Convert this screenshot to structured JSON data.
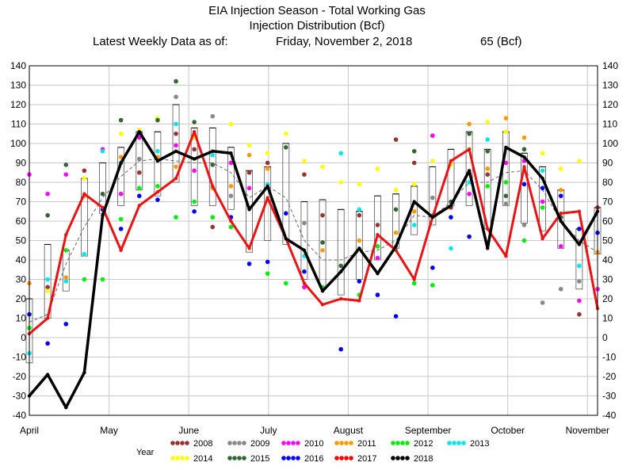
{
  "chart_data": {
    "type": "line",
    "title": "EIA Injection Season - Total Working Gas",
    "subtitle": "Injection Distribution (Bcf)",
    "latest_label": "Latest Weekly Data as of:",
    "latest_date": "Friday, November 2, 2018",
    "latest_value": "65 (Bcf)",
    "ylim": [
      -40,
      140
    ],
    "y_ticks": [
      -40,
      -30,
      -20,
      -10,
      0,
      10,
      20,
      30,
      40,
      50,
      60,
      70,
      80,
      90,
      100,
      110,
      120,
      130,
      140
    ],
    "grid": true,
    "x_month_labels": [
      "April",
      "May",
      "June",
      "July",
      "August",
      "September",
      "October",
      "November"
    ],
    "x_month_positions": [
      0,
      4.35,
      8.7,
      13.05,
      17.4,
      21.75,
      26.1,
      30.45
    ],
    "weeks": 31,
    "legend_title": "Year",
    "legend_items": [
      {
        "year": "2008",
        "color": "#993333"
      },
      {
        "year": "2009",
        "color": "#888888"
      },
      {
        "year": "2010",
        "color": "#ff00ff"
      },
      {
        "year": "2011",
        "color": "#ff9900"
      },
      {
        "year": "2012",
        "color": "#00ee00"
      },
      {
        "year": "2013",
        "color": "#00e5ee"
      },
      {
        "year": "2014",
        "color": "#ffff00"
      },
      {
        "year": "2015",
        "color": "#336633"
      },
      {
        "year": "2016",
        "color": "#0000ff"
      },
      {
        "year": "2017",
        "color": "#ff0000"
      },
      {
        "year": "2018",
        "color": "#000000"
      }
    ],
    "series": [
      {
        "name": "2017",
        "color": "#ee1111",
        "width": 3,
        "values": [
          2,
          10,
          53,
          74,
          67,
          45,
          68,
          75,
          82,
          106,
          78,
          60,
          46,
          72,
          51,
          28,
          17,
          20,
          19,
          53,
          45,
          30,
          62,
          91,
          97,
          56,
          42,
          88,
          51,
          64,
          65,
          15
        ]
      },
      {
        "name": "2018",
        "color": "#000000",
        "width": 3.5,
        "values": [
          -30,
          -19,
          -36,
          -18,
          63,
          90,
          106,
          91,
          96,
          92,
          96,
          95,
          66,
          78,
          51,
          45,
          24,
          34,
          46,
          33,
          47,
          70,
          62,
          68,
          86,
          46,
          98,
          93,
          82,
          60,
          48,
          65
        ]
      }
    ],
    "average": [
      8,
      12,
      38,
      57,
      72,
      83,
      91,
      92,
      91,
      90,
      90,
      85,
      72,
      78,
      72,
      50,
      40,
      40,
      44,
      45,
      50,
      63,
      62,
      70,
      80,
      80,
      85,
      86,
      76,
      60,
      50,
      44
    ],
    "box_ranges": [
      [
        -13,
        20
      ],
      [
        10,
        48
      ],
      [
        24,
        45
      ],
      [
        42,
        82
      ],
      [
        64,
        90
      ],
      [
        68,
        98
      ],
      [
        76,
        106
      ],
      [
        73,
        106
      ],
      [
        80,
        120
      ],
      [
        68,
        108
      ],
      [
        68,
        108
      ],
      [
        66,
        98
      ],
      [
        44,
        86
      ],
      [
        50,
        88
      ],
      [
        48,
        100
      ],
      [
        30,
        70
      ],
      [
        26,
        71
      ],
      [
        22,
        66
      ],
      [
        30,
        65
      ],
      [
        40,
        73
      ],
      [
        46,
        74
      ],
      [
        53,
        78
      ],
      [
        58,
        88
      ],
      [
        68,
        97
      ],
      [
        68,
        106
      ],
      [
        56,
        97
      ],
      [
        68,
        106
      ],
      [
        59,
        95
      ],
      [
        55,
        88
      ],
      [
        46,
        76
      ],
      [
        25,
        56
      ],
      [
        43,
        67
      ]
    ],
    "scatter": [
      [
        0,
        84,
        "#ff00ff"
      ],
      [
        0,
        28,
        "#ff9900"
      ],
      [
        0,
        12,
        "#0000ff"
      ],
      [
        0,
        5,
        "#00ee00"
      ],
      [
        0,
        -8,
        "#00e5ee"
      ],
      [
        1,
        74,
        "#ff00ff"
      ],
      [
        1,
        63,
        "#336633"
      ],
      [
        1,
        30,
        "#00e5ee"
      ],
      [
        1,
        26,
        "#993333"
      ],
      [
        1,
        24,
        "#ffff00"
      ],
      [
        1,
        -3,
        "#0000ff"
      ],
      [
        2,
        89,
        "#336633"
      ],
      [
        2,
        84,
        "#ff00ff"
      ],
      [
        2,
        45,
        "#00ee00"
      ],
      [
        2,
        31,
        "#ff9900"
      ],
      [
        2,
        29,
        "#00e5ee"
      ],
      [
        2,
        7,
        "#0000ff"
      ],
      [
        3,
        86,
        "#993333"
      ],
      [
        3,
        82,
        "#ffff00"
      ],
      [
        3,
        73,
        "#ff9900"
      ],
      [
        3,
        43,
        "#00e5ee"
      ],
      [
        3,
        30,
        "#00ee00"
      ],
      [
        4,
        97,
        "#ff00ff"
      ],
      [
        4,
        96,
        "#00e5ee"
      ],
      [
        4,
        74,
        "#336633"
      ],
      [
        4,
        66,
        "#0000ff"
      ],
      [
        4,
        30,
        "#00ee00"
      ],
      [
        5,
        112,
        "#336633"
      ],
      [
        5,
        105,
        "#ffff00"
      ],
      [
        5,
        93,
        "#ff9900"
      ],
      [
        5,
        90,
        "#00e5ee"
      ],
      [
        5,
        74,
        "#ff00ff"
      ],
      [
        5,
        61,
        "#00ee00"
      ],
      [
        5,
        56,
        "#0000ff"
      ],
      [
        6,
        107,
        "#ffff00"
      ],
      [
        6,
        103,
        "#ff00ff"
      ],
      [
        6,
        92,
        "#888888"
      ],
      [
        6,
        85,
        "#993333"
      ],
      [
        6,
        77,
        "#00ee00"
      ],
      [
        6,
        73,
        "#0000ff"
      ],
      [
        7,
        113,
        "#ffff00"
      ],
      [
        7,
        112,
        "#336633"
      ],
      [
        7,
        96,
        "#00e5ee"
      ],
      [
        7,
        93,
        "#ff9900"
      ],
      [
        7,
        78,
        "#00ee00"
      ],
      [
        7,
        71,
        "#0000ff"
      ],
      [
        8,
        132,
        "#336633"
      ],
      [
        8,
        124,
        "#888888"
      ],
      [
        8,
        110,
        "#00e5ee"
      ],
      [
        8,
        105,
        "#993333"
      ],
      [
        8,
        99,
        "#ff00ff"
      ],
      [
        8,
        88,
        "#ff9900"
      ],
      [
        8,
        62,
        "#00ee00"
      ],
      [
        9,
        111,
        "#336633"
      ],
      [
        9,
        103,
        "#ffff00"
      ],
      [
        9,
        97,
        "#993333"
      ],
      [
        9,
        86,
        "#ff00ff"
      ],
      [
        9,
        70,
        "#00ee00"
      ],
      [
        9,
        65,
        "#0000ff"
      ],
      [
        10,
        114,
        "#888888"
      ],
      [
        10,
        94,
        "#00e5ee"
      ],
      [
        10,
        89,
        "#336633"
      ],
      [
        10,
        77,
        "#ff9900"
      ],
      [
        10,
        62,
        "#00ee00"
      ],
      [
        10,
        57,
        "#993333"
      ],
      [
        11,
        110,
        "#ffff00"
      ],
      [
        11,
        90,
        "#ff00ff"
      ],
      [
        11,
        78,
        "#ff9900"
      ],
      [
        11,
        73,
        "#888888"
      ],
      [
        11,
        62,
        "#0000ff"
      ],
      [
        11,
        57,
        "#00ee00"
      ],
      [
        12,
        99,
        "#ffff00"
      ],
      [
        12,
        94,
        "#ff9900"
      ],
      [
        12,
        85,
        "#993333"
      ],
      [
        12,
        77,
        "#ff00ff"
      ],
      [
        12,
        38,
        "#0000ff"
      ],
      [
        13,
        95,
        "#ffff00"
      ],
      [
        13,
        90,
        "#993333"
      ],
      [
        13,
        87,
        "#ff9900"
      ],
      [
        13,
        79,
        "#00e5ee"
      ],
      [
        13,
        39,
        "#0000ff"
      ],
      [
        13,
        33,
        "#00ee00"
      ],
      [
        14,
        105,
        "#ffff00"
      ],
      [
        14,
        98,
        "#336633"
      ],
      [
        14,
        64,
        "#0000ff"
      ],
      [
        14,
        28,
        "#00ee00"
      ],
      [
        15,
        91,
        "#ffff00"
      ],
      [
        15,
        84,
        "#993333"
      ],
      [
        15,
        59,
        "#888888"
      ],
      [
        15,
        42,
        "#00e5ee"
      ],
      [
        15,
        34,
        "#0000ff"
      ],
      [
        15,
        26,
        "#ff00ff"
      ],
      [
        16,
        88,
        "#ffff00"
      ],
      [
        16,
        63,
        "#993333"
      ],
      [
        16,
        49,
        "#336633"
      ],
      [
        16,
        45,
        "#ff9900"
      ],
      [
        16,
        26,
        "#00ee00"
      ],
      [
        17,
        95,
        "#00e5ee"
      ],
      [
        17,
        80,
        "#ffff00"
      ],
      [
        17,
        37,
        "#336633"
      ],
      [
        17,
        -6,
        "#0000ff"
      ],
      [
        18,
        79,
        "#ffff00"
      ],
      [
        18,
        66,
        "#00e5ee"
      ],
      [
        18,
        63,
        "#993333"
      ],
      [
        18,
        50,
        "#ff9900"
      ],
      [
        18,
        29,
        "#0000ff"
      ],
      [
        18,
        22,
        "#00ee00"
      ],
      [
        19,
        87,
        "#ffff00"
      ],
      [
        19,
        58,
        "#993333"
      ],
      [
        19,
        47,
        "#00ee00"
      ],
      [
        19,
        41,
        "#ff00ff"
      ],
      [
        19,
        22,
        "#0000ff"
      ],
      [
        20,
        102,
        "#993333"
      ],
      [
        20,
        76,
        "#ffff00"
      ],
      [
        20,
        66,
        "#336633"
      ],
      [
        20,
        54,
        "#ff9900"
      ],
      [
        20,
        11,
        "#0000ff"
      ],
      [
        21,
        96,
        "#336633"
      ],
      [
        21,
        90,
        "#993333"
      ],
      [
        21,
        79,
        "#ffff00"
      ],
      [
        21,
        65,
        "#ff9900"
      ],
      [
        21,
        58,
        "#00e5ee"
      ],
      [
        21,
        28,
        "#00ee00"
      ],
      [
        22,
        104,
        "#ff00ff"
      ],
      [
        22,
        91,
        "#ffff00"
      ],
      [
        22,
        72,
        "#888888"
      ],
      [
        22,
        63,
        "#00e5ee"
      ],
      [
        22,
        36,
        "#0000ff"
      ],
      [
        22,
        27,
        "#00ee00"
      ],
      [
        23,
        89,
        "#ffff00"
      ],
      [
        23,
        70,
        "#336633"
      ],
      [
        23,
        67,
        "#993333"
      ],
      [
        23,
        62,
        "#0000ff"
      ],
      [
        23,
        46,
        "#00e5ee"
      ],
      [
        24,
        110,
        "#ff9900"
      ],
      [
        24,
        105,
        "#336633"
      ],
      [
        24,
        97,
        "#ffff00"
      ],
      [
        24,
        80,
        "#00e5ee"
      ],
      [
        24,
        74,
        "#ff00ff"
      ],
      [
        24,
        52,
        "#0000ff"
      ],
      [
        25,
        111,
        "#ffff00"
      ],
      [
        25,
        102,
        "#00e5ee"
      ],
      [
        25,
        96,
        "#336633"
      ],
      [
        25,
        87,
        "#ff9900"
      ],
      [
        25,
        78,
        "#00ee00"
      ],
      [
        25,
        84,
        "#993333"
      ],
      [
        26,
        113,
        "#ff9900"
      ],
      [
        26,
        106,
        "#ffff00"
      ],
      [
        26,
        90,
        "#ff00ff"
      ],
      [
        26,
        80,
        "#00ee00"
      ],
      [
        26,
        73,
        "#336633"
      ],
      [
        26,
        69,
        "#888888"
      ],
      [
        27,
        103,
        "#ff9900"
      ],
      [
        27,
        97,
        "#336633"
      ],
      [
        27,
        91,
        "#ff00ff"
      ],
      [
        27,
        79,
        "#0000ff"
      ],
      [
        27,
        58,
        "#888888"
      ],
      [
        27,
        50,
        "#00ee00"
      ],
      [
        28,
        95,
        "#ffff00"
      ],
      [
        28,
        86,
        "#00e5ee"
      ],
      [
        28,
        77,
        "#0000ff"
      ],
      [
        28,
        70,
        "#ff00ff"
      ],
      [
        28,
        67,
        "#00ee00"
      ],
      [
        28,
        18,
        "#888888"
      ],
      [
        29,
        87,
        "#ffff00"
      ],
      [
        29,
        76,
        "#ff9900"
      ],
      [
        29,
        73,
        "#0000ff"
      ],
      [
        29,
        62,
        "#336633"
      ],
      [
        29,
        47,
        "#ff00ff"
      ],
      [
        29,
        25,
        "#888888"
      ],
      [
        30,
        91,
        "#ffff00"
      ],
      [
        30,
        56,
        "#0000ff"
      ],
      [
        30,
        37,
        "#00e5ee"
      ],
      [
        30,
        29,
        "#888888"
      ],
      [
        30,
        19,
        "#ff00ff"
      ],
      [
        30,
        12,
        "#993333"
      ],
      [
        31,
        67,
        "#993333"
      ],
      [
        31,
        54,
        "#0000ff"
      ],
      [
        31,
        44,
        "#ff9900"
      ],
      [
        31,
        25,
        "#ff00ff"
      ]
    ]
  }
}
